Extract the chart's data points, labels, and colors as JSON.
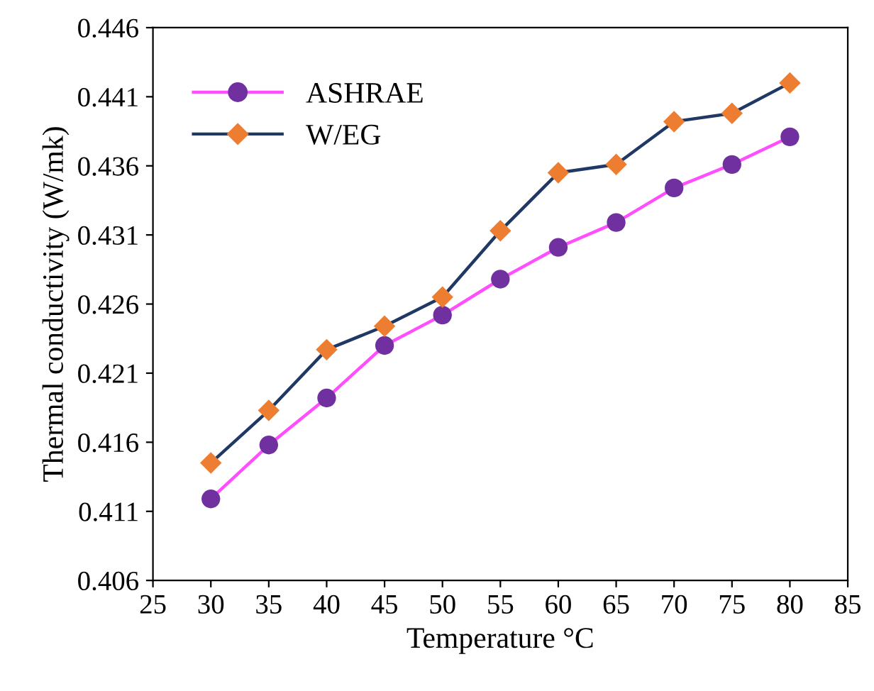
{
  "chart_data": {
    "type": "line",
    "xlabel": "Temperature °C",
    "ylabel": "Thermal conductivity (W/mk)",
    "x": [
      30,
      35,
      40,
      45,
      50,
      55,
      60,
      65,
      70,
      75,
      80
    ],
    "series": [
      {
        "name": "ASHRAE",
        "color": "#ff4dff",
        "marker": "circle",
        "colors": [
          "#7030a0",
          "#7030a0",
          "#7030a0",
          "#7030a0",
          "#7030a0",
          "#7030a0",
          "#7030a0",
          "#7030a0",
          "#7030a0",
          "#7030a0",
          "#7030a0"
        ],
        "values": [
          0.4119,
          0.4158,
          0.4192,
          0.423,
          0.4252,
          0.4278,
          0.4301,
          0.4319,
          0.4344,
          0.4361,
          0.4381
        ]
      },
      {
        "name": "W/EG",
        "color": "#1f3864",
        "marker": "diamond",
        "colors": [
          "#ed7d31",
          "#ed7d31",
          "#ed7d31",
          "#ed7d31",
          "#ed7d31",
          "#ed7d31",
          "#ed7d31",
          "#ed7d31",
          "#ed7d31",
          "#ed7d31",
          "#ed7d31"
        ],
        "values": [
          0.4145,
          0.4183,
          0.4227,
          0.4244,
          0.4265,
          0.4313,
          0.4355,
          0.4361,
          0.4392,
          0.4398,
          0.442
        ]
      }
    ],
    "xlim": [
      25,
      85
    ],
    "xticks": [
      25,
      30,
      35,
      40,
      45,
      50,
      55,
      60,
      65,
      70,
      75,
      80,
      85
    ],
    "ylim": [
      0.406,
      0.446
    ],
    "yticks": [
      0.406,
      0.411,
      0.416,
      0.421,
      0.426,
      0.431,
      0.436,
      0.441,
      0.446
    ],
    "legend": "top left",
    "grid": false,
    "line_style": "solid"
  }
}
